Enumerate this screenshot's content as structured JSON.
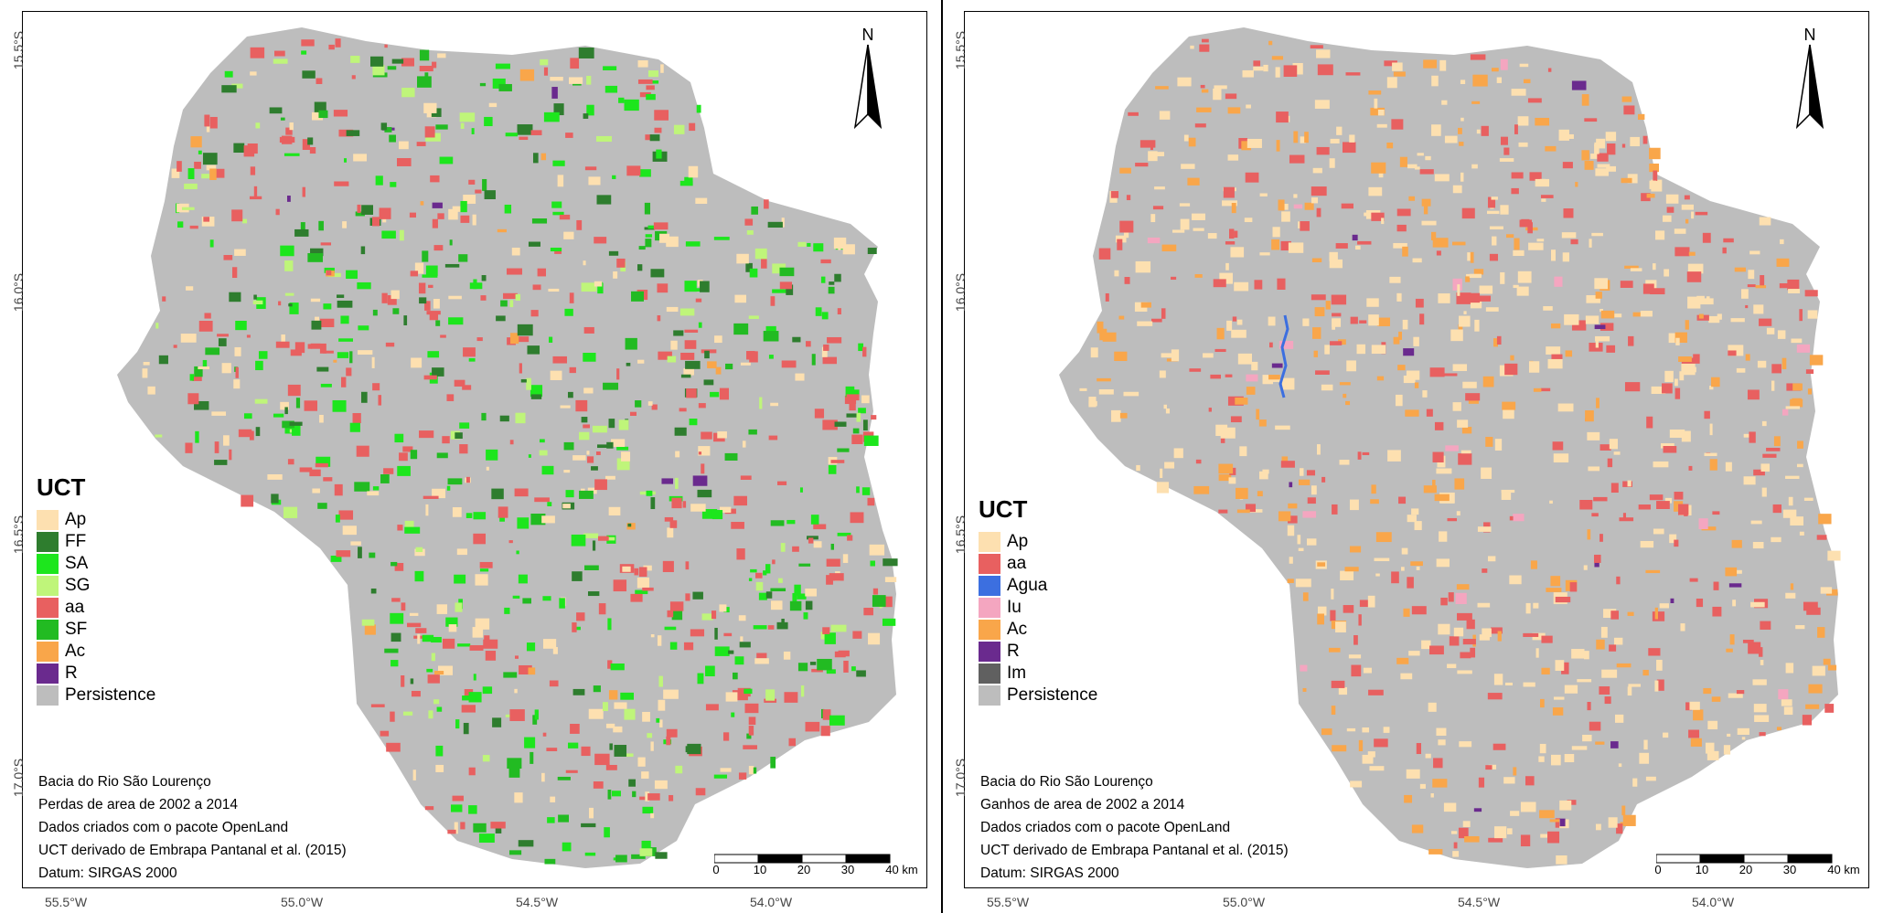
{
  "panels": [
    {
      "id": "losses",
      "legend": {
        "title": "UCT",
        "items": [
          {
            "label": "Ap",
            "color": "#fde0b0"
          },
          {
            "label": "FF",
            "color": "#2e7d2e"
          },
          {
            "label": "SA",
            "color": "#1de61d"
          },
          {
            "label": "SG",
            "color": "#bff57a"
          },
          {
            "label": "aa",
            "color": "#e86060"
          },
          {
            "label": "SF",
            "color": "#22bb22"
          },
          {
            "label": "Ac",
            "color": "#f9a64a"
          },
          {
            "label": "R",
            "color": "#6a2a8e"
          },
          {
            "label": "Persistence",
            "color": "#bdbdbd"
          }
        ]
      },
      "notes": [
        "Bacia do Rio São Lourenço",
        "Perdas de area de 2002 a 2014",
        "Dados criados com o pacote OpenLand",
        "UCT derivado de Embrapa Pantanal et al. (2015)",
        "Datum: SIRGAS 2000"
      ]
    },
    {
      "id": "gains",
      "legend": {
        "title": "UCT",
        "items": [
          {
            "label": "Ap",
            "color": "#fde0b0"
          },
          {
            "label": "aa",
            "color": "#e86060"
          },
          {
            "label": "Agua",
            "color": "#3c6fe0"
          },
          {
            "label": "Iu",
            "color": "#f4a6c0"
          },
          {
            "label": "Ac",
            "color": "#f9a64a"
          },
          {
            "label": "R",
            "color": "#6a2a8e"
          },
          {
            "label": "Im",
            "color": "#606060"
          },
          {
            "label": "Persistence",
            "color": "#bdbdbd"
          }
        ]
      },
      "notes": [
        "Bacia do Rio São Lourenço",
        "Ganhos de area de 2002 a 2014",
        "Dados criados com o pacote OpenLand",
        "UCT derivado de Embrapa Pantanal et al. (2015)",
        "Datum: SIRGAS 2000"
      ]
    }
  ],
  "axes": {
    "y_labels": [
      "15.5°S",
      "16.0°S",
      "16.5°S",
      "17.0°S"
    ],
    "x_labels": [
      "55.5°W",
      "55.0°W",
      "54.5°W",
      "54.0°W"
    ]
  },
  "north_arrow": "N",
  "scale_bar": {
    "ticks": [
      "0",
      "10",
      "20",
      "30",
      "40 km"
    ]
  },
  "colors": {
    "background": "#bdbdbd",
    "border": "#000000"
  }
}
